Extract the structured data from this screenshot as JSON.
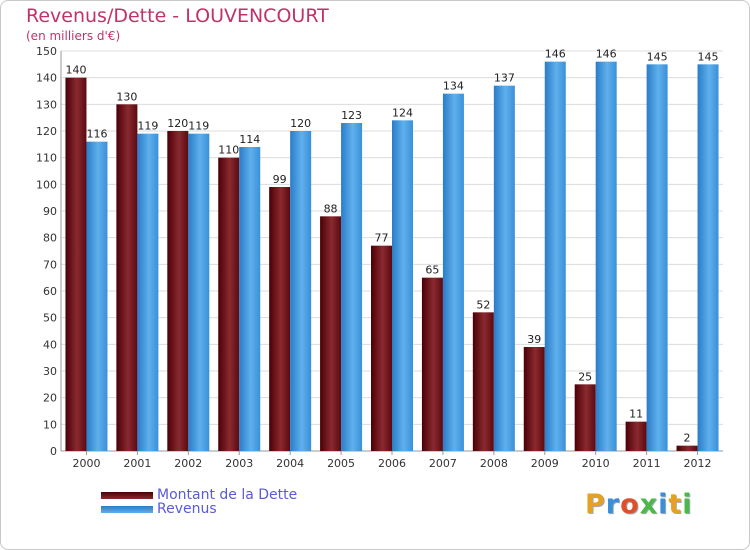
{
  "title": "Revenus/Dette - LOUVENCOURT",
  "subtitle": "(en milliers d'€)",
  "logo": "Proxiti",
  "colors": {
    "debt": "#6b0a10",
    "revenue": "#3a90d8",
    "title": "#c0336a",
    "legend_text": "#5a5ad6"
  },
  "chart_data": {
    "type": "bar",
    "title": "Revenus/Dette - LOUVENCOURT",
    "subtitle": "(en milliers d'€)",
    "xlabel": "",
    "ylabel": "",
    "ylim": [
      0,
      150
    ],
    "yticks": [
      0,
      10,
      20,
      30,
      40,
      50,
      60,
      70,
      80,
      90,
      100,
      110,
      120,
      130,
      140,
      150
    ],
    "grid": true,
    "legend_position": "bottom-left",
    "categories": [
      "2000",
      "2001",
      "2002",
      "2003",
      "2004",
      "2005",
      "2006",
      "2007",
      "2008",
      "2009",
      "2010",
      "2011",
      "2012"
    ],
    "series": [
      {
        "name": "Montant de la Dette",
        "values": [
          140,
          130,
          120,
          110,
          99,
          88,
          77,
          65,
          52,
          39,
          25,
          11,
          2
        ]
      },
      {
        "name": "Revenus",
        "values": [
          116,
          119,
          119,
          114,
          120,
          123,
          124,
          134,
          137,
          146,
          146,
          145,
          145
        ]
      }
    ]
  }
}
